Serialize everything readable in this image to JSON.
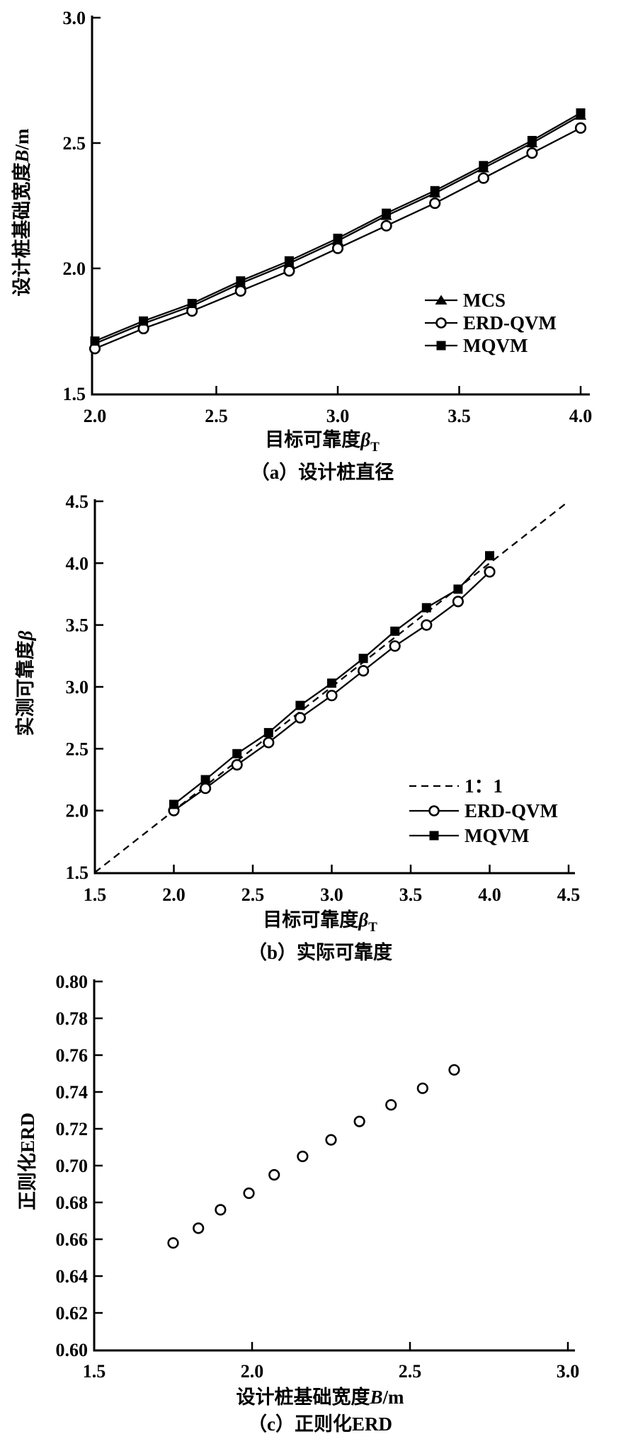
{
  "figure": {
    "colors": {
      "ink": "#000000",
      "background": "#ffffff"
    },
    "charts": [
      {
        "id": "a",
        "caption": "（a）设计桩直径",
        "xlabel": {
          "prefix": "目标可靠度",
          "symbol": "β",
          "subscript": "T"
        },
        "ylabel": {
          "prefix": "设计桩基础宽度",
          "symbol": "B",
          "suffix": "/m"
        },
        "xlim": [
          2.0,
          4.0
        ],
        "ylim": [
          1.5,
          3.0
        ],
        "xticks": {
          "values": [
            2.0,
            2.5,
            3.0,
            3.5,
            4.0
          ],
          "labels": [
            "2.0",
            "2.5",
            "3.0",
            "3.5",
            "4.0"
          ]
        },
        "yticks": {
          "values": [
            1.5,
            2.0,
            2.5,
            3.0
          ],
          "labels": [
            "1.5",
            "2.0",
            "2.5",
            "3.0"
          ]
        },
        "chart_data": {
          "type": "line",
          "x": [
            2.0,
            2.2,
            2.4,
            2.6,
            2.8,
            3.0,
            3.2,
            3.4,
            3.6,
            3.8,
            4.0
          ],
          "grid": false,
          "legend_position": "lower-right"
        },
        "x": [
          2.0,
          2.2,
          2.4,
          2.6,
          2.8,
          3.0,
          3.2,
          3.4,
          3.6,
          3.8,
          4.0
        ],
        "series": [
          {
            "name": "MCS",
            "marker": "triangle-filled",
            "line": "solid",
            "values": [
              1.7,
              1.78,
              1.85,
              1.94,
              2.02,
              2.11,
              2.21,
              2.3,
              2.4,
              2.5,
              2.61
            ]
          },
          {
            "name": "ERD-QVM",
            "marker": "circle-open",
            "line": "solid",
            "values": [
              1.68,
              1.76,
              1.83,
              1.91,
              1.99,
              2.08,
              2.17,
              2.26,
              2.36,
              2.46,
              2.56
            ]
          },
          {
            "name": "MQVM",
            "marker": "square-filled",
            "line": "solid",
            "values": [
              1.71,
              1.79,
              1.86,
              1.95,
              2.03,
              2.12,
              2.22,
              2.31,
              2.41,
              2.51,
              2.62
            ]
          }
        ]
      },
      {
        "id": "b",
        "caption": "（b）实际可靠度",
        "xlabel": {
          "prefix": "目标可靠度",
          "symbol": "β",
          "subscript": "T"
        },
        "ylabel": {
          "prefix": "实测可靠度",
          "symbol": "β"
        },
        "xlim": [
          1.5,
          4.5
        ],
        "ylim": [
          1.5,
          4.5
        ],
        "xticks": {
          "values": [
            1.5,
            2.0,
            2.5,
            3.0,
            3.5,
            4.0,
            4.5
          ],
          "labels": [
            "1.5",
            "2.0",
            "2.5",
            "3.0",
            "3.5",
            "4.0",
            "4.5"
          ]
        },
        "yticks": {
          "values": [
            1.5,
            2.0,
            2.5,
            3.0,
            3.5,
            4.0,
            4.5
          ],
          "labels": [
            "1.5",
            "2.0",
            "2.5",
            "3.0",
            "3.5",
            "4.0",
            "4.5"
          ]
        },
        "chart_data": {
          "type": "line",
          "x": [
            2.0,
            2.2,
            2.4,
            2.6,
            2.8,
            3.0,
            3.2,
            3.4,
            3.6,
            3.8,
            4.0
          ],
          "grid": false,
          "legend_position": "lower-right",
          "reference_line": "1:1 diagonal from (1.5,1.5) to (4.5,4.5)"
        },
        "x": [
          2.0,
          2.2,
          2.4,
          2.6,
          2.8,
          3.0,
          3.2,
          3.4,
          3.6,
          3.8,
          4.0
        ],
        "series": [
          {
            "name": "1：1",
            "marker": "none",
            "line": "dashed",
            "x": [
              1.5,
              4.5
            ],
            "values": [
              1.5,
              4.5
            ]
          },
          {
            "name": "ERD-QVM",
            "marker": "circle-open",
            "line": "solid",
            "values": [
              2.0,
              2.18,
              2.37,
              2.55,
              2.75,
              2.93,
              3.13,
              3.33,
              3.5,
              3.69,
              3.93
            ]
          },
          {
            "name": "MQVM",
            "marker": "square-filled",
            "line": "solid",
            "values": [
              2.05,
              2.25,
              2.46,
              2.63,
              2.85,
              3.03,
              3.23,
              3.45,
              3.64,
              3.79,
              4.06
            ]
          }
        ]
      },
      {
        "id": "c",
        "caption": "（c）正则化ERD",
        "xlabel": {
          "prefix": "设计桩基础宽度",
          "symbol": "B",
          "suffix": "/m"
        },
        "ylabel": {
          "prefix": "正则化",
          "suffix": "ERD"
        },
        "xlim": [
          1.5,
          3.0
        ],
        "ylim": [
          0.6,
          0.8
        ],
        "xticks": {
          "values": [
            1.5,
            2.0,
            2.5,
            3.0
          ],
          "labels": [
            "1.5",
            "2.0",
            "2.5",
            "3.0"
          ]
        },
        "yticks": {
          "values": [
            0.6,
            0.62,
            0.64,
            0.66,
            0.68,
            0.7,
            0.72,
            0.74,
            0.76,
            0.78,
            0.8
          ],
          "labels": [
            "0.60",
            "0.62",
            "0.64",
            "0.66",
            "0.68",
            "0.70",
            "0.72",
            "0.74",
            "0.76",
            "0.78",
            "0.80"
          ]
        },
        "chart_data": {
          "type": "scatter",
          "grid": false,
          "legend_position": "none"
        },
        "x": [
          1.75,
          1.83,
          1.9,
          1.99,
          2.07,
          2.16,
          2.25,
          2.34,
          2.44,
          2.54,
          2.64
        ],
        "series": [
          {
            "name": "正则化ERD",
            "marker": "circle-open",
            "line": "none",
            "values": [
              0.658,
              0.666,
              0.676,
              0.685,
              0.695,
              0.705,
              0.714,
              0.724,
              0.733,
              0.742,
              0.752
            ]
          }
        ]
      }
    ]
  }
}
